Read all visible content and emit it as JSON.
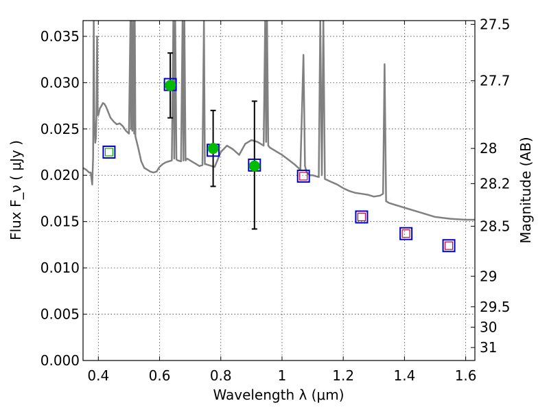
{
  "chart_data": {
    "type": "scatter",
    "xlabel": "Wavelength  λ (μm)",
    "ylabel": "Flux  F_ν  ( μJy )",
    "y2label": "Magnitude (AB)",
    "xlim": [
      0.35,
      1.63
    ],
    "ylim": [
      0.0,
      0.0367
    ],
    "grid": true,
    "x_ticks": [
      0.4,
      0.6,
      0.8,
      1.0,
      1.2,
      1.4,
      1.6
    ],
    "x_tick_labels": [
      "0.4",
      "0.6",
      "0.8",
      "1",
      "1.2",
      "1.4",
      "1.6"
    ],
    "y_ticks": [
      0.0,
      0.005,
      0.01,
      0.015,
      0.02,
      0.025,
      0.03,
      0.035
    ],
    "y_tick_labels": [
      "0.000",
      "0.005",
      "0.010",
      "0.015",
      "0.020",
      "0.025",
      "0.030",
      "0.035"
    ],
    "y2_ticks": [
      {
        "label": "27.5",
        "flux": 0.0363
      },
      {
        "label": "27.7",
        "flux": 0.0302
      },
      {
        "label": "28",
        "flux": 0.0229
      },
      {
        "label": "28.2",
        "flux": 0.0191
      },
      {
        "label": "28.5",
        "flux": 0.0145
      },
      {
        "label": "29",
        "flux": 0.0091
      },
      {
        "label": "29.5",
        "flux": 0.0058
      },
      {
        "label": "30",
        "flux": 0.0036
      },
      {
        "label": "31",
        "flux": 0.0014
      }
    ],
    "series": [
      {
        "kind": "model_sed",
        "color": "#808080",
        "x": [
          0.35,
          0.36,
          0.37,
          0.375,
          0.38,
          0.383,
          0.385,
          0.387,
          0.39,
          0.392,
          0.394,
          0.396,
          0.398,
          0.4,
          0.405,
          0.41,
          0.415,
          0.42,
          0.425,
          0.43,
          0.435,
          0.44,
          0.45,
          0.46,
          0.47,
          0.48,
          0.49,
          0.5,
          0.505,
          0.507,
          0.509,
          0.511,
          0.515,
          0.517,
          0.519,
          0.521,
          0.53,
          0.54,
          0.55,
          0.56,
          0.57,
          0.58,
          0.59,
          0.6,
          0.61,
          0.62,
          0.63,
          0.64,
          0.645,
          0.648,
          0.651,
          0.655,
          0.66,
          0.67,
          0.675,
          0.678,
          0.681,
          0.685,
          0.69,
          0.695,
          0.7,
          0.71,
          0.72,
          0.73,
          0.74,
          0.745,
          0.748,
          0.751,
          0.76,
          0.78,
          0.8,
          0.82,
          0.84,
          0.86,
          0.88,
          0.9,
          0.92,
          0.94,
          0.945,
          0.948,
          0.951,
          0.955,
          0.96,
          0.98,
          1.0,
          1.02,
          1.04,
          1.06,
          1.07,
          1.075,
          1.08,
          1.09,
          1.1,
          1.12,
          1.125,
          1.13,
          1.135,
          1.14,
          1.16,
          1.18,
          1.2,
          1.22,
          1.24,
          1.26,
          1.28,
          1.3,
          1.32,
          1.33,
          1.335,
          1.34,
          1.35,
          1.4,
          1.45,
          1.5,
          1.55,
          1.6,
          1.63
        ],
        "y": [
          0.0208,
          0.0206,
          0.0203,
          0.0203,
          0.019,
          0.022,
          0.0367,
          0.026,
          0.0235,
          0.024,
          0.0265,
          0.035,
          0.0265,
          0.0265,
          0.0272,
          0.0275,
          0.0278,
          0.0277,
          0.0274,
          0.027,
          0.0266,
          0.0262,
          0.0258,
          0.0255,
          0.0256,
          0.0253,
          0.0248,
          0.0245,
          0.0367,
          0.025,
          0.0367,
          0.0248,
          0.0367,
          0.0245,
          0.0367,
          0.0242,
          0.023,
          0.0215,
          0.0208,
          0.0206,
          0.0204,
          0.0203,
          0.0204,
          0.0209,
          0.0212,
          0.0214,
          0.0215,
          0.0216,
          0.0367,
          0.0218,
          0.0367,
          0.0217,
          0.0216,
          0.0215,
          0.0367,
          0.0216,
          0.0367,
          0.0216,
          0.0218,
          0.0217,
          0.0216,
          0.0214,
          0.0212,
          0.021,
          0.0211,
          0.0367,
          0.0212,
          0.0212,
          0.0211,
          0.0209,
          0.0225,
          0.0232,
          0.0228,
          0.0222,
          0.0234,
          0.0238,
          0.0236,
          0.0232,
          0.0367,
          0.0236,
          0.0367,
          0.0232,
          0.023,
          0.0226,
          0.0222,
          0.0217,
          0.0212,
          0.0206,
          0.033,
          0.021,
          0.0204,
          0.02,
          0.02,
          0.0198,
          0.0367,
          0.02,
          0.0367,
          0.0196,
          0.0193,
          0.019,
          0.0186,
          0.0183,
          0.0181,
          0.018,
          0.0179,
          0.0177,
          0.0178,
          0.018,
          0.032,
          0.0172,
          0.017,
          0.0165,
          0.016,
          0.0155,
          0.0153,
          0.0152,
          0.0152
        ]
      },
      {
        "kind": "observed",
        "marker": "filled-circle",
        "color": "#00bb00",
        "points": [
          {
            "x": 0.635,
            "y": 0.0297,
            "ylo": 0.0262,
            "yhi": 0.0332
          },
          {
            "x": 0.775,
            "y": 0.0229,
            "ylo": 0.0188,
            "yhi": 0.027
          },
          {
            "x": 0.91,
            "y": 0.021,
            "ylo": 0.0142,
            "yhi": 0.028
          }
        ]
      },
      {
        "kind": "model_blue",
        "marker": "open-square",
        "color": "#0000cc",
        "points": [
          {
            "x": 0.435,
            "y": 0.0225
          },
          {
            "x": 0.635,
            "y": 0.0298
          },
          {
            "x": 0.775,
            "y": 0.0227
          },
          {
            "x": 0.91,
            "y": 0.0211
          },
          {
            "x": 1.07,
            "y": 0.0199
          },
          {
            "x": 1.26,
            "y": 0.0155
          },
          {
            "x": 1.405,
            "y": 0.0137
          },
          {
            "x": 1.545,
            "y": 0.0124
          }
        ]
      },
      {
        "kind": "model_red",
        "marker": "open-square-small",
        "color": "#cc0033",
        "points": [
          {
            "x": 1.07,
            "y": 0.0199
          },
          {
            "x": 1.26,
            "y": 0.0155
          },
          {
            "x": 1.405,
            "y": 0.0137
          },
          {
            "x": 1.545,
            "y": 0.0124
          }
        ]
      },
      {
        "kind": "model_green",
        "marker": "open-square-small",
        "color": "#00aa00",
        "points": [
          {
            "x": 0.435,
            "y": 0.0225
          }
        ]
      }
    ]
  }
}
